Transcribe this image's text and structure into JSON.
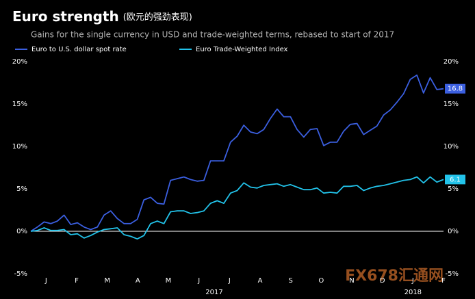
{
  "chart_data": {
    "type": "line",
    "title": "Euro strength",
    "title_note": "(欧元的强劲表现)",
    "subtitle": "Gains for the single currency in USD and trade-weighted terms, rebased to start of 2017",
    "months": [
      "J",
      "F",
      "M",
      "A",
      "M",
      "J",
      "J",
      "A",
      "S",
      "O",
      "N",
      "D",
      "J",
      "F"
    ],
    "years": [
      "2017",
      "2018"
    ],
    "series": [
      {
        "name": "Euro to U.S. dollar spot rate",
        "color": "#3b5fe0",
        "values": [
          0,
          0.5,
          1.1,
          0.9,
          1.2,
          1.9,
          0.8,
          1.0,
          0.5,
          0.2,
          0.5,
          1.9,
          2.4,
          1.5,
          0.9,
          0.9,
          1.4,
          3.7,
          4.0,
          3.3,
          3.2,
          6.0,
          6.2,
          6.4,
          6.1,
          5.9,
          6.0,
          8.3,
          8.3,
          8.3,
          10.5,
          11.2,
          12.5,
          11.7,
          11.5,
          12.0,
          13.3,
          14.4,
          13.5,
          13.5,
          12.0,
          11.1,
          12.0,
          12.1,
          10.1,
          10.5,
          10.5,
          11.8,
          12.6,
          12.7,
          11.4,
          11.9,
          12.4,
          13.7,
          14.3,
          15.2,
          16.2,
          17.9,
          18.4,
          16.3,
          18.1,
          16.7,
          16.8
        ]
      },
      {
        "name": "Euro Trade-Weighted Index",
        "color": "#22c3ea",
        "values": [
          0,
          0.1,
          0.4,
          0.1,
          0.1,
          0.2,
          -0.4,
          -0.3,
          -0.8,
          -0.5,
          -0.1,
          0.2,
          0.3,
          0.4,
          -0.4,
          -0.6,
          -0.9,
          -0.5,
          0.9,
          1.2,
          0.9,
          2.3,
          2.4,
          2.4,
          2.1,
          2.2,
          2.4,
          3.3,
          3.6,
          3.3,
          4.5,
          4.8,
          5.7,
          5.2,
          5.1,
          5.4,
          5.5,
          5.6,
          5.3,
          5.5,
          5.2,
          4.9,
          4.9,
          5.1,
          4.5,
          4.6,
          4.5,
          5.3,
          5.3,
          5.4,
          4.8,
          5.1,
          5.3,
          5.4,
          5.6,
          5.8,
          6.0,
          6.1,
          6.4,
          5.7,
          6.4,
          5.8,
          6.1
        ]
      }
    ],
    "ylim": [
      -5,
      20
    ],
    "yticks": [
      {
        "value": 20,
        "label": "20%"
      },
      {
        "value": 15,
        "label": "15%"
      },
      {
        "value": 10,
        "label": "10%"
      },
      {
        "value": 5,
        "label": "5%"
      },
      {
        "value": 0,
        "label": "0%"
      },
      {
        "value": -5,
        "label": "-5%"
      }
    ],
    "watermark": "FX678汇通网"
  }
}
